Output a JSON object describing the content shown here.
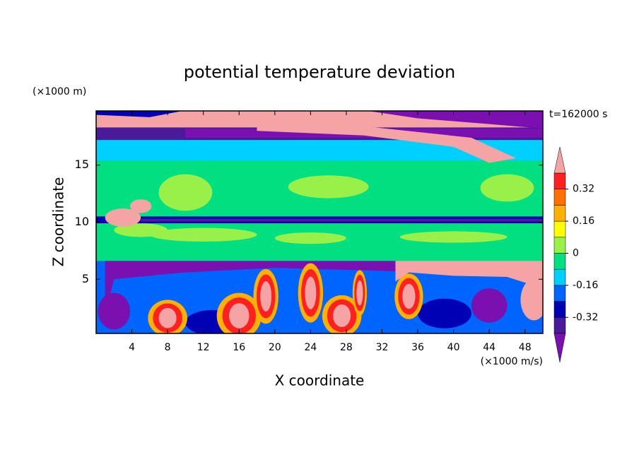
{
  "chart_data": {
    "type": "contour",
    "title": "potential temperature deviation",
    "x_label": "X coordinate",
    "y_label": "Z coordinate",
    "x_unit": "(×1000 m/s)",
    "y_unit": "(×1000 m)",
    "time_label": "t=162000 s",
    "xlim": [
      0,
      50
    ],
    "xticks": [
      4,
      8,
      12,
      16,
      20,
      24,
      28,
      32,
      36,
      40,
      44,
      48
    ],
    "ylim": [
      0.25,
      19.75
    ],
    "yticks": [
      5,
      10,
      15
    ],
    "colorbar": {
      "levels": [
        -0.4,
        -0.32,
        -0.24,
        -0.16,
        -0.08,
        0,
        0.08,
        0.16,
        0.24,
        0.32,
        0.4
      ],
      "colors": [
        "#7a10b0",
        "#4a1a9a",
        "#0000b4",
        "#0064ff",
        "#00d0ff",
        "#00e080",
        "#98f048",
        "#ffff00",
        "#ffb000",
        "#ff7000",
        "#ff2020",
        "#f4a4a4"
      ],
      "ticks": [
        -0.32,
        -0.16,
        0,
        0.16,
        0.32
      ]
    }
  }
}
